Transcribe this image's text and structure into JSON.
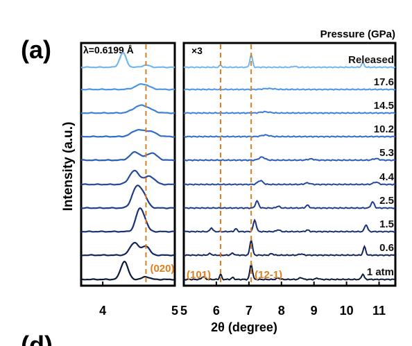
{
  "figure": {
    "panel_label": "(a)",
    "next_panel_label": "(d)",
    "ylabel": "Intensity (a.u.)",
    "xlabel": "2θ (degree)",
    "legend_title": "Pressure (GPa)",
    "wavelength_label": "λ=0.6199 Å",
    "scale_note": "×3"
  },
  "chart_data": [
    {
      "type": "line",
      "title": "",
      "xlabel": "2θ (degree)",
      "ylabel": "Intensity (a.u.)",
      "xlim": [
        3.7,
        5.0
      ],
      "x_ticks": [
        4,
        5
      ],
      "x_tick_labels": [
        "4",
        "5"
      ],
      "grid": false,
      "annotations": [
        {
          "text": "(020)",
          "x": 4.6,
          "color": "#e07d1e"
        }
      ],
      "dashed_lines": [
        {
          "x": 4.6,
          "color": "#e07d1e"
        }
      ],
      "curves_bottom_to_top": [
        {
          "peaks": [
            [
              4.3,
              1.0,
              0.05
            ],
            [
              4.6,
              0.15,
              0.05
            ]
          ]
        },
        {
          "peaks": [
            [
              4.44,
              0.7,
              0.06
            ],
            [
              4.6,
              0.5,
              0.05
            ]
          ]
        },
        {
          "peaks": [
            [
              4.5,
              1.0,
              0.05
            ],
            [
              4.57,
              0.6,
              0.05
            ]
          ]
        },
        {
          "peaks": [
            [
              4.46,
              1.0,
              0.06
            ],
            [
              4.56,
              0.7,
              0.06
            ]
          ]
        },
        {
          "peaks": [
            [
              4.44,
              0.75,
              0.07
            ],
            [
              4.65,
              0.45,
              0.07
            ]
          ]
        },
        {
          "peaks": [
            [
              4.45,
              0.45,
              0.07
            ],
            [
              4.68,
              0.4,
              0.07
            ]
          ]
        },
        {
          "peaks": [
            [
              4.48,
              0.35,
              0.08
            ],
            [
              4.66,
              0.28,
              0.08
            ]
          ]
        },
        {
          "peaks": [
            [
              4.5,
              0.32,
              0.09
            ],
            [
              4.62,
              0.2,
              0.09
            ]
          ]
        },
        {
          "peaks": [
            [
              4.55,
              0.3,
              0.09
            ]
          ]
        },
        {
          "peaks": [
            [
              4.28,
              0.8,
              0.045
            ],
            [
              4.6,
              0.12,
              0.05
            ]
          ]
        }
      ]
    },
    {
      "type": "line",
      "title": "",
      "xlabel": "2θ (degree)",
      "ylabel": "",
      "xlim": [
        5.0,
        11.5
      ],
      "x_ticks": [
        5,
        6,
        7,
        8,
        9,
        10,
        11
      ],
      "x_tick_labels": [
        "5",
        "6",
        "7",
        "8",
        "9",
        "10",
        "11"
      ],
      "grid": false,
      "legend_title": "Pressure (GPa)",
      "annotations": [
        {
          "text": "(101)",
          "x": 6.13,
          "color": "#e07d1e"
        },
        {
          "text": "(12-1)",
          "x": 7.07,
          "color": "#e07d1e"
        }
      ],
      "dashed_lines": [
        {
          "x": 6.13,
          "color": "#e07d1e"
        },
        {
          "x": 7.07,
          "color": "#e07d1e"
        }
      ],
      "series": [
        {
          "name": "1 atm",
          "color": "#0a1a3c",
          "peaks": [
            [
              5.6,
              0.18,
              0.05
            ],
            [
              6.13,
              0.35,
              0.03
            ],
            [
              6.5,
              0.12,
              0.04
            ],
            [
              7.07,
              1.0,
              0.04
            ],
            [
              7.9,
              0.1,
              0.05
            ],
            [
              8.6,
              0.12,
              0.05
            ],
            [
              9.1,
              0.08,
              0.05
            ],
            [
              10.5,
              0.35,
              0.04
            ]
          ]
        },
        {
          "name": "0.6",
          "color": "#12245c",
          "peaks": [
            [
              5.8,
              0.1,
              0.05
            ],
            [
              6.5,
              0.12,
              0.05
            ],
            [
              7.07,
              1.0,
              0.04
            ],
            [
              7.7,
              0.1,
              0.05
            ],
            [
              8.6,
              0.08,
              0.06
            ],
            [
              10.55,
              0.55,
              0.04
            ]
          ]
        },
        {
          "name": "1.5",
          "color": "#18307a",
          "peaks": [
            [
              5.85,
              0.25,
              0.04
            ],
            [
              6.6,
              0.18,
              0.04
            ],
            [
              7.18,
              0.75,
              0.045
            ],
            [
              7.9,
              0.12,
              0.05
            ],
            [
              8.8,
              0.1,
              0.05
            ],
            [
              10.6,
              0.45,
              0.045
            ]
          ]
        },
        {
          "name": "2.5",
          "color": "#1d3c8e",
          "peaks": [
            [
              7.25,
              0.45,
              0.05
            ],
            [
              7.9,
              0.12,
              0.05
            ],
            [
              8.8,
              0.18,
              0.05
            ],
            [
              10.8,
              0.4,
              0.05
            ]
          ]
        },
        {
          "name": "4.4",
          "color": "#2248a2",
          "peaks": [
            [
              7.35,
              0.25,
              0.08
            ],
            [
              8.8,
              0.1,
              0.08
            ],
            [
              10.9,
              0.15,
              0.08
            ]
          ]
        },
        {
          "name": "5.3",
          "color": "#2a5ab6",
          "peaks": [
            [
              7.4,
              0.2,
              0.09
            ],
            [
              8.9,
              0.08,
              0.09
            ],
            [
              10.9,
              0.1,
              0.09
            ]
          ]
        },
        {
          "name": "10.2",
          "color": "#326cc8",
          "peaks": [
            [
              7.5,
              0.1,
              0.12
            ]
          ]
        },
        {
          "name": "14.5",
          "color": "#3a80d8",
          "peaks": [
            [
              7.5,
              0.08,
              0.14
            ]
          ]
        },
        {
          "name": "17.6",
          "color": "#4a94e4",
          "peaks": [
            [
              7.6,
              0.06,
              0.16
            ]
          ]
        },
        {
          "name": "Released",
          "color": "#72b6ef",
          "peaks": [
            [
              6.13,
              0.2,
              0.03
            ],
            [
              7.07,
              1.0,
              0.04
            ],
            [
              8.4,
              0.08,
              0.05
            ],
            [
              10.5,
              0.35,
              0.04
            ]
          ]
        }
      ]
    }
  ]
}
